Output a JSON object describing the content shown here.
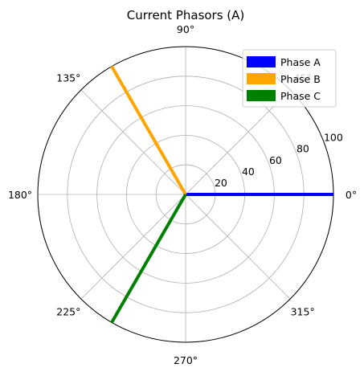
{
  "chart_data": {
    "type": "polar",
    "title": "Current Phasors (A)",
    "radial_ticks": [
      20,
      40,
      60,
      80,
      100
    ],
    "rlim": [
      0,
      100
    ],
    "angle_ticks_deg": [
      0,
      45,
      90,
      135,
      180,
      225,
      270,
      315
    ],
    "angle_tick_labels": [
      "0°",
      "45°",
      "90°",
      "135°",
      "180°",
      "225°",
      "270°",
      "315°"
    ],
    "grid": true,
    "legend_position": "upper right",
    "series": [
      {
        "name": "Phase A",
        "magnitude": 100,
        "angle_deg": 0,
        "color": "#0000ff"
      },
      {
        "name": "Phase B",
        "magnitude": 100,
        "angle_deg": 120,
        "color": "#ffa500"
      },
      {
        "name": "Phase C",
        "magnitude": 100,
        "angle_deg": 240,
        "color": "#008000"
      }
    ]
  }
}
